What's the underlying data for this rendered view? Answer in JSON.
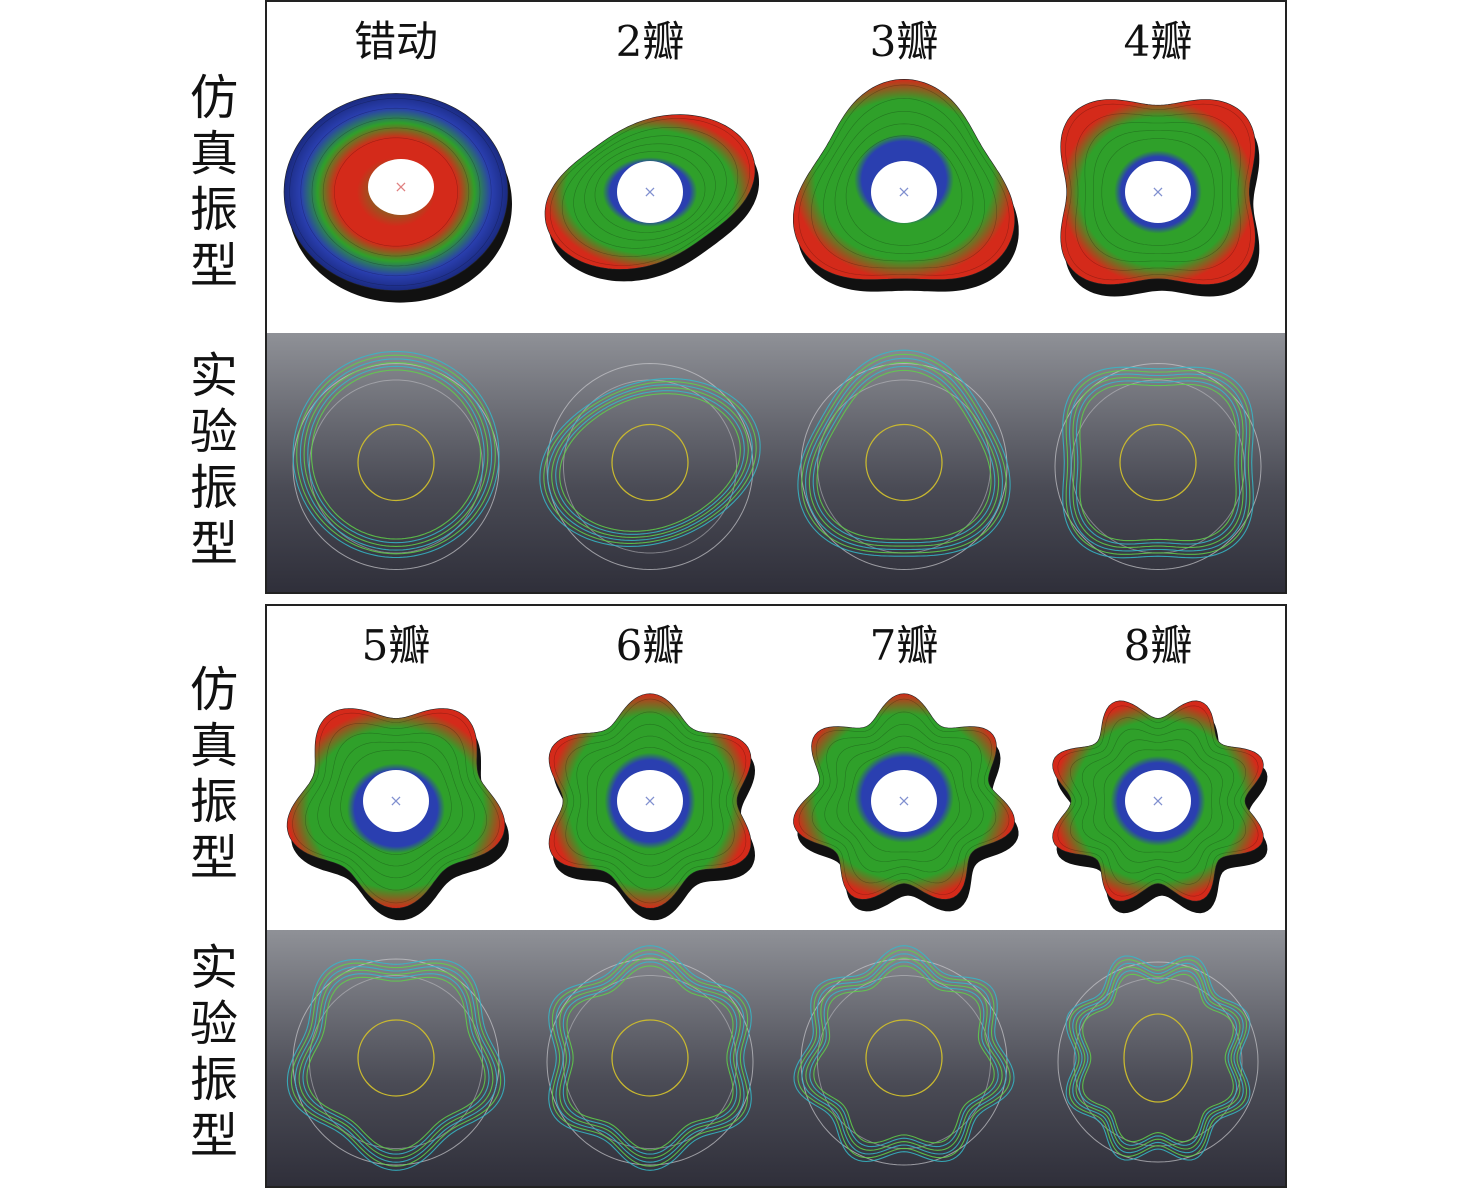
{
  "panels": [
    {
      "sim_label": "仿真振型",
      "exp_label": "实验振型",
      "modes": [
        {
          "title": "错动",
          "petals": 0
        },
        {
          "title": "2瓣",
          "petals": 2
        },
        {
          "title": "3瓣",
          "petals": 3
        },
        {
          "title": "4瓣",
          "petals": 4
        }
      ]
    },
    {
      "sim_label": "仿真振型",
      "exp_label": "实验振型",
      "modes": [
        {
          "title": "5瓣",
          "petals": 5
        },
        {
          "title": "6瓣",
          "petals": 6
        },
        {
          "title": "7瓣",
          "petals": 7
        },
        {
          "title": "8瓣",
          "petals": 8
        }
      ]
    }
  ],
  "colors": {
    "outer": "#d42a1a",
    "mid": "#2fa02a",
    "inner": "#2a3fb0",
    "wire": "#5fd04a",
    "wire_alt": "#35b8c8",
    "ref": "#c8c8cc",
    "hub": "#c8b830"
  }
}
